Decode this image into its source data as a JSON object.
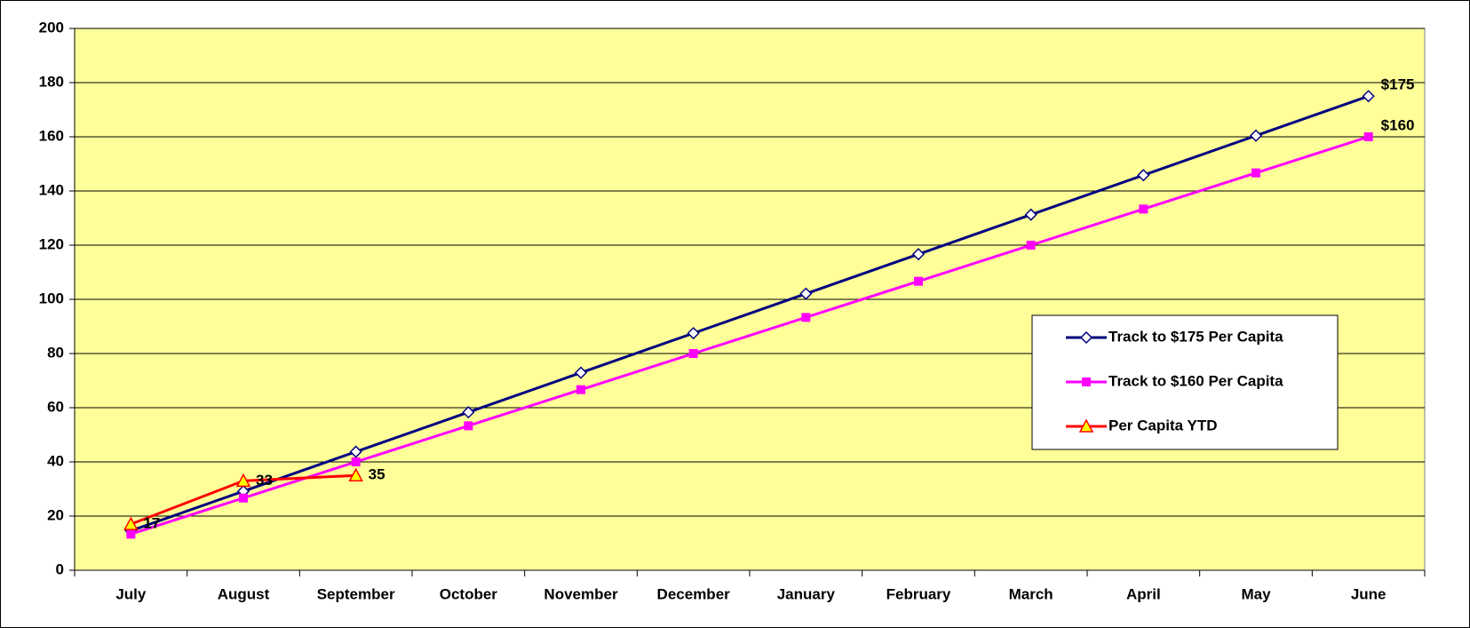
{
  "chart_data": {
    "type": "line",
    "categories": [
      "July",
      "August",
      "September",
      "October",
      "November",
      "December",
      "January",
      "February",
      "March",
      "April",
      "May",
      "June"
    ],
    "series": [
      {
        "name": "Track to $175 Per Capita",
        "color": "#000080",
        "marker": "diamond",
        "values": [
          14.58,
          29.17,
          43.75,
          58.33,
          72.92,
          87.5,
          102.08,
          116.67,
          131.25,
          145.83,
          160.42,
          175
        ],
        "value_labels": [
          null,
          null,
          null,
          null,
          null,
          null,
          null,
          null,
          null,
          null,
          null,
          "$175"
        ]
      },
      {
        "name": "Track to $160 Per Capita",
        "color": "#ff00ff",
        "marker": "square",
        "values": [
          13.33,
          26.67,
          40,
          53.33,
          66.67,
          80,
          93.33,
          106.67,
          120,
          133.33,
          146.67,
          160
        ],
        "value_labels": [
          null,
          null,
          null,
          null,
          null,
          null,
          null,
          null,
          null,
          null,
          null,
          "$160"
        ]
      },
      {
        "name": "Per Capita YTD",
        "color": "#ff0000",
        "marker": "triangle",
        "values": [
          17,
          33,
          35,
          null,
          null,
          null,
          null,
          null,
          null,
          null,
          null,
          null
        ],
        "value_labels": [
          "17",
          "33",
          "35",
          null,
          null,
          null,
          null,
          null,
          null,
          null,
          null,
          null
        ]
      }
    ],
    "ylim": [
      0,
      200
    ],
    "yticks": [
      0,
      20,
      40,
      60,
      80,
      100,
      120,
      140,
      160,
      180,
      200
    ],
    "grid": true,
    "legend": "right",
    "background": "#ffff99"
  }
}
